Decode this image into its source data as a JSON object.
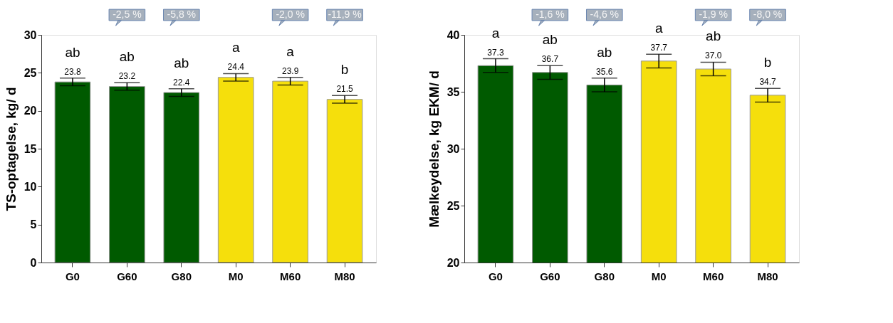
{
  "chart_data": [
    {
      "type": "bar",
      "ylabel": "TS-optagelse, kg/ d",
      "categories": [
        "G0",
        "G60",
        "G80",
        "M0",
        "M60",
        "M80"
      ],
      "values": [
        23.8,
        23.2,
        22.4,
        24.4,
        23.9,
        21.5
      ],
      "value_labels": [
        "23.8",
        "23.2",
        "22.4",
        "24.4",
        "23.9",
        "21.5"
      ],
      "colors": [
        "#005a00",
        "#005a00",
        "#005a00",
        "#f5df0c",
        "#f5df0c",
        "#f5df0c"
      ],
      "errors": [
        0.5,
        0.5,
        0.5,
        0.5,
        0.5,
        0.5
      ],
      "ylim": [
        0,
        30
      ],
      "yticks": [
        0,
        5,
        10,
        15,
        20,
        25,
        30
      ],
      "annotations": [
        "ab",
        "ab",
        "ab",
        "a",
        "a",
        "b",
        null,
        "-2,5 %",
        "-5,8 %",
        null,
        "-2,0 %",
        "-11,9 %"
      ]
    },
    {
      "type": "bar",
      "ylabel": "Mælkeydelse, kg EKM/ d",
      "categories": [
        "G0",
        "G60",
        "G80",
        "M0",
        "M60",
        "M80"
      ],
      "values": [
        37.3,
        36.7,
        35.6,
        37.7,
        37.0,
        34.7
      ],
      "value_labels": [
        "37.3",
        "36.7",
        "35.6",
        "37.7",
        "37.0",
        "34.7"
      ],
      "colors": [
        "#005a00",
        "#005a00",
        "#005a00",
        "#f5df0c",
        "#f5df0c",
        "#f5df0c"
      ],
      "errors": [
        0.6,
        0.6,
        0.6,
        0.6,
        0.6,
        0.6
      ],
      "ylim": [
        20,
        40
      ],
      "yticks": [
        20,
        25,
        30,
        35,
        40
      ],
      "annotations": [
        "a",
        "ab",
        "ab",
        "a",
        "ab",
        "b",
        null,
        "-1,6 %",
        "-4,6 %",
        null,
        "-1,9 %",
        "-8,0 %"
      ]
    }
  ]
}
